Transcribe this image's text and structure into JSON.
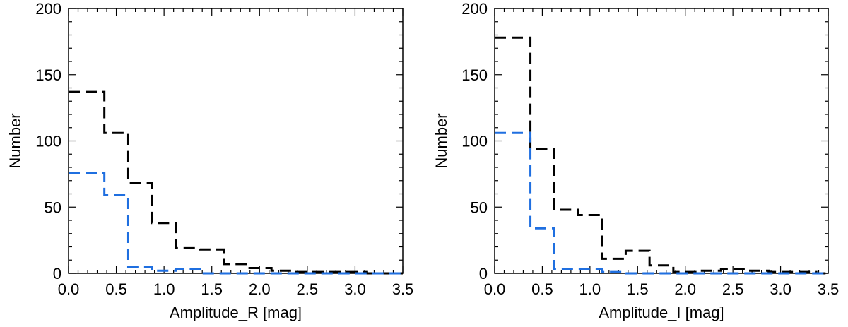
{
  "chart_data": [
    {
      "type": "histogram",
      "panel": "left",
      "title": "",
      "xlabel": "Amplitude_R [mag]",
      "ylabel": "Number",
      "xlim": [
        0.0,
        3.5
      ],
      "ylim": [
        0,
        200
      ],
      "xticks": [
        "0.0",
        "0.5",
        "1.0",
        "1.5",
        "2.0",
        "2.5",
        "3.0",
        "3.5"
      ],
      "yticks": [
        "0",
        "50",
        "100",
        "150",
        "200"
      ],
      "bin_edges": [
        0.0,
        0.375,
        0.625,
        0.875,
        1.125,
        1.375,
        1.625,
        1.875,
        2.125,
        2.375,
        2.625,
        2.875,
        3.125,
        3.375,
        3.5
      ],
      "series": [
        {
          "color": "#000000",
          "style": "dashed",
          "values": [
            137,
            106,
            68,
            38,
            19,
            18,
            7,
            4,
            2,
            1,
            1,
            1,
            0,
            0
          ]
        },
        {
          "color": "#1f6fe0",
          "style": "dashed",
          "values": [
            76,
            59,
            5,
            2,
            3,
            0,
            0,
            0,
            0,
            0,
            0,
            0,
            0,
            0
          ]
        }
      ]
    },
    {
      "type": "histogram",
      "panel": "right",
      "title": "",
      "xlabel": "Amplitude_I [mag]",
      "ylabel": "Number",
      "xlim": [
        0.0,
        3.5
      ],
      "ylim": [
        0,
        200
      ],
      "xticks": [
        "0.0",
        "0.5",
        "1.0",
        "1.5",
        "2.0",
        "2.5",
        "3.0",
        "3.5"
      ],
      "yticks": [
        "0",
        "50",
        "100",
        "150",
        "200"
      ],
      "bin_edges": [
        0.0,
        0.375,
        0.625,
        0.875,
        1.125,
        1.375,
        1.625,
        1.875,
        2.125,
        2.375,
        2.625,
        2.875,
        3.125,
        3.375,
        3.5
      ],
      "series": [
        {
          "color": "#000000",
          "style": "dashed",
          "values": [
            178,
            94,
            48,
            44,
            11,
            17,
            6,
            1,
            2,
            3,
            2,
            1,
            1,
            0
          ]
        },
        {
          "color": "#1f6fe0",
          "style": "dashed",
          "values": [
            106,
            34,
            3,
            3,
            1,
            0,
            0,
            0,
            0,
            0,
            0,
            0,
            0,
            0
          ]
        }
      ]
    }
  ]
}
